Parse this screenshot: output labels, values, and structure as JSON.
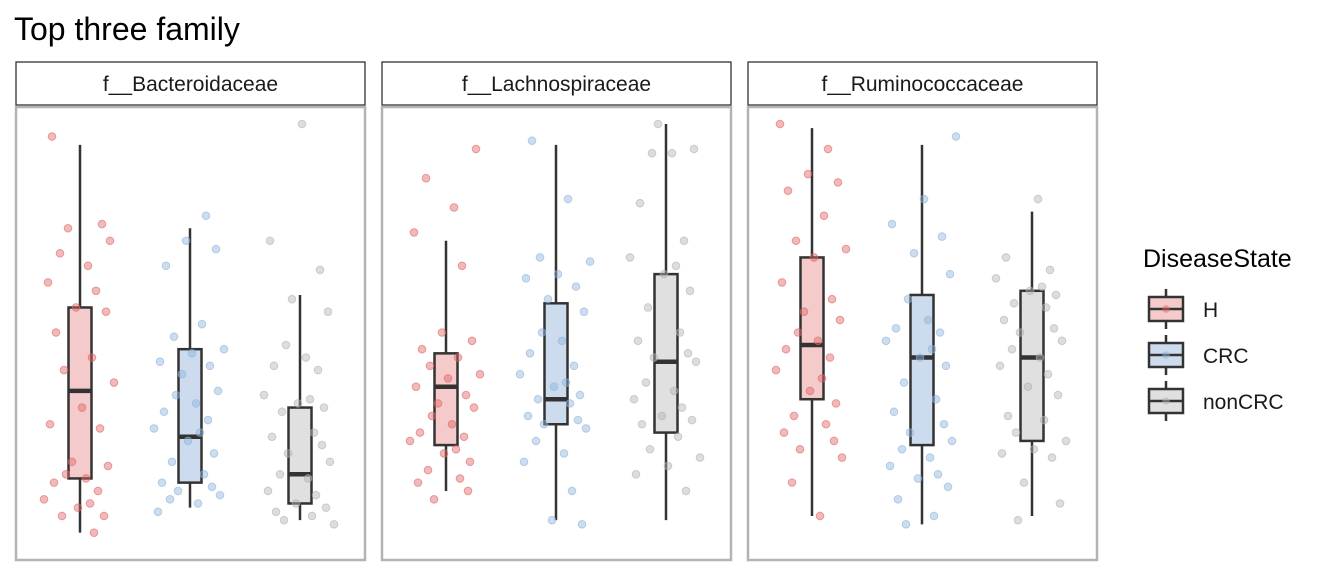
{
  "chart_data": {
    "type": "box",
    "title": "Top three family",
    "facets": [
      "f__Bacteroidaceae",
      "f__Lachnospiraceae",
      "f__Ruminococcaceae"
    ],
    "groups": [
      "H",
      "CRC",
      "nonCRC"
    ],
    "legend": {
      "title": "DiseaseState",
      "entries": [
        "H",
        "CRC",
        "nonCRC"
      ],
      "position": "right"
    },
    "colors": {
      "H": {
        "fill": "#f4caca",
        "point": "#e06666"
      },
      "CRC": {
        "fill": "#ccdcee",
        "point": "#8fb4dc"
      },
      "nonCRC": {
        "fill": "#e0e0e0",
        "point": "#b3b3b3"
      },
      "box_line": "#333333",
      "panel_border": "#b3b3b3"
    },
    "y_axis_shown": false,
    "ylim": [
      0,
      1
    ],
    "grid": false,
    "boxes": [
      {
        "facet": "f__Bacteroidaceae",
        "stats": {
          "H": {
            "min": 0.02,
            "q1": 0.15,
            "median": 0.36,
            "q3": 0.56,
            "max": 0.95
          },
          "CRC": {
            "min": 0.08,
            "q1": 0.14,
            "median": 0.25,
            "q3": 0.46,
            "max": 0.75
          },
          "nonCRC": {
            "min": 0.05,
            "q1": 0.09,
            "median": 0.16,
            "q3": 0.32,
            "max": 0.59
          }
        },
        "points": {
          "H": [
            0.97,
            0.76,
            0.75,
            0.72,
            0.69,
            0.66,
            0.62,
            0.6,
            0.56,
            0.55,
            0.5,
            0.44,
            0.41,
            0.38,
            0.32,
            0.28,
            0.27,
            0.19,
            0.18,
            0.16,
            0.15,
            0.14,
            0.12,
            0.1,
            0.09,
            0.08,
            0.06,
            0.06,
            0.02
          ],
          "CRC": [
            0.78,
            0.72,
            0.7,
            0.66,
            0.52,
            0.49,
            0.46,
            0.45,
            0.43,
            0.42,
            0.4,
            0.36,
            0.35,
            0.33,
            0.31,
            0.29,
            0.27,
            0.26,
            0.24,
            0.21,
            0.19,
            0.16,
            0.14,
            0.13,
            0.12,
            0.11,
            0.1,
            0.09,
            0.07
          ],
          "nonCRC": [
            1.0,
            0.72,
            0.65,
            0.58,
            0.55,
            0.47,
            0.44,
            0.42,
            0.41,
            0.35,
            0.34,
            0.33,
            0.32,
            0.31,
            0.26,
            0.25,
            0.23,
            0.21,
            0.19,
            0.16,
            0.15,
            0.12,
            0.11,
            0.09,
            0.08,
            0.07,
            0.06,
            0.05,
            0.04
          ]
        }
      },
      {
        "facet": "f__Lachnospiraceae",
        "stats": {
          "H": {
            "min": 0.12,
            "q1": 0.23,
            "median": 0.37,
            "q3": 0.45,
            "max": 0.72
          },
          "CRC": {
            "min": 0.05,
            "q1": 0.28,
            "median": 0.34,
            "q3": 0.57,
            "max": 0.95
          },
          "nonCRC": {
            "min": 0.05,
            "q1": 0.26,
            "median": 0.43,
            "q3": 0.64,
            "max": 1.0
          }
        },
        "points": {
          "H": [
            0.94,
            0.87,
            0.8,
            0.74,
            0.66,
            0.5,
            0.48,
            0.46,
            0.44,
            0.42,
            0.4,
            0.39,
            0.37,
            0.35,
            0.33,
            0.32,
            0.3,
            0.28,
            0.26,
            0.25,
            0.24,
            0.22,
            0.21,
            0.19,
            0.17,
            0.15,
            0.14,
            0.12,
            0.1
          ],
          "CRC": [
            0.96,
            0.82,
            0.68,
            0.67,
            0.64,
            0.63,
            0.61,
            0.58,
            0.55,
            0.5,
            0.48,
            0.45,
            0.42,
            0.4,
            0.38,
            0.37,
            0.35,
            0.34,
            0.33,
            0.3,
            0.29,
            0.28,
            0.27,
            0.24,
            0.21,
            0.19,
            0.12,
            0.05,
            0.04
          ],
          "nonCRC": [
            1.0,
            0.94,
            0.93,
            0.93,
            0.81,
            0.72,
            0.68,
            0.66,
            0.64,
            0.6,
            0.56,
            0.5,
            0.48,
            0.45,
            0.44,
            0.43,
            0.38,
            0.36,
            0.34,
            0.32,
            0.3,
            0.29,
            0.28,
            0.25,
            0.22,
            0.2,
            0.18,
            0.16,
            0.12
          ]
        }
      },
      {
        "facet": "f__Ruminococcaceae",
        "stats": {
          "H": {
            "min": 0.06,
            "q1": 0.34,
            "median": 0.47,
            "q3": 0.68,
            "max": 0.99
          },
          "CRC": {
            "min": 0.04,
            "q1": 0.23,
            "median": 0.44,
            "q3": 0.59,
            "max": 0.95
          },
          "nonCRC": {
            "min": 0.06,
            "q1": 0.24,
            "median": 0.44,
            "q3": 0.6,
            "max": 0.79
          }
        },
        "points": {
          "H": [
            1.0,
            0.94,
            0.88,
            0.86,
            0.84,
            0.78,
            0.72,
            0.7,
            0.68,
            0.62,
            0.58,
            0.55,
            0.53,
            0.5,
            0.48,
            0.46,
            0.44,
            0.41,
            0.39,
            0.36,
            0.33,
            0.3,
            0.28,
            0.26,
            0.24,
            0.22,
            0.2,
            0.14,
            0.06
          ],
          "CRC": [
            0.97,
            0.82,
            0.76,
            0.73,
            0.69,
            0.64,
            0.58,
            0.53,
            0.51,
            0.5,
            0.48,
            0.46,
            0.44,
            0.42,
            0.38,
            0.34,
            0.31,
            0.28,
            0.26,
            0.24,
            0.22,
            0.2,
            0.18,
            0.16,
            0.15,
            0.13,
            0.1,
            0.06,
            0.04
          ],
          "nonCRC": [
            0.82,
            0.68,
            0.65,
            0.63,
            0.61,
            0.6,
            0.59,
            0.57,
            0.56,
            0.53,
            0.51,
            0.5,
            0.48,
            0.46,
            0.44,
            0.42,
            0.4,
            0.37,
            0.35,
            0.3,
            0.29,
            0.26,
            0.24,
            0.22,
            0.21,
            0.2,
            0.14,
            0.09,
            0.05
          ]
        }
      }
    ]
  }
}
